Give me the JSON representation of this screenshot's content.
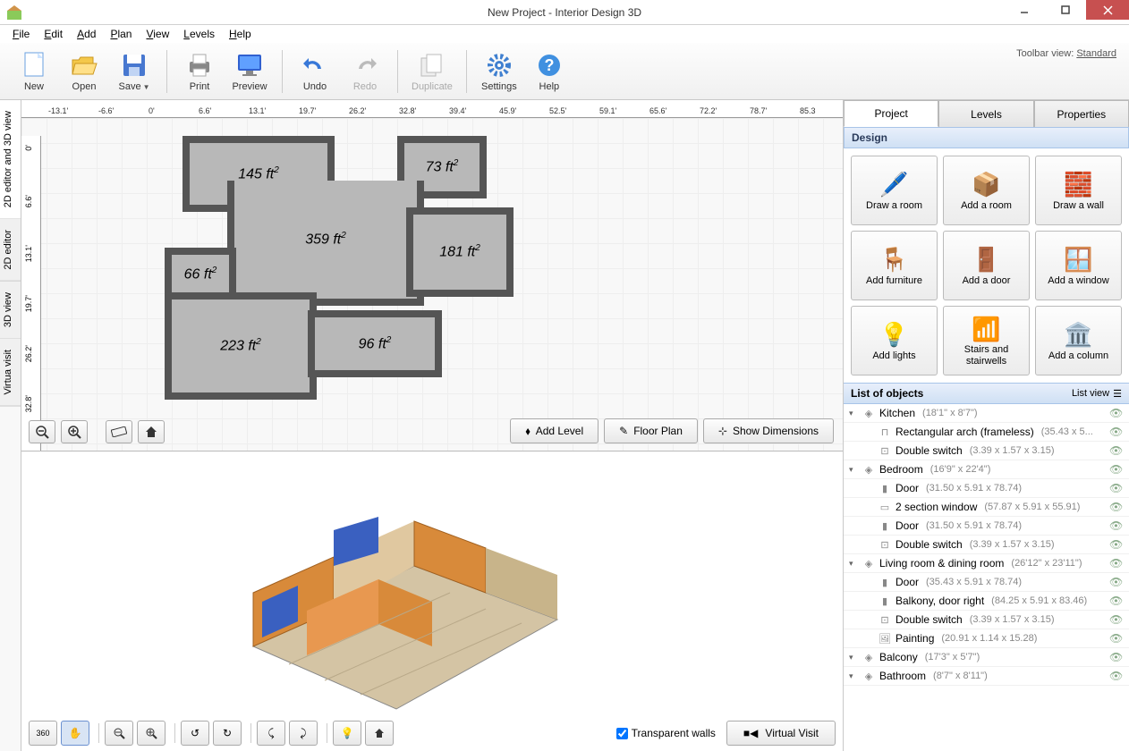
{
  "window": {
    "title": "New Project - Interior Design 3D"
  },
  "menu": {
    "items": [
      "File",
      "Edit",
      "Add",
      "Plan",
      "View",
      "Levels",
      "Help"
    ]
  },
  "toolbar_view": {
    "label": "Toolbar view:",
    "value": "Standard"
  },
  "toolbar": {
    "new": "New",
    "open": "Open",
    "save": "Save",
    "print": "Print",
    "preview": "Preview",
    "undo": "Undo",
    "redo": "Redo",
    "duplicate": "Duplicate",
    "settings": "Settings",
    "help": "Help"
  },
  "vtabs": {
    "combo": "2D editor and 3D view",
    "editor": "2D editor",
    "v3d": "3D view",
    "vv": "Virtua visit"
  },
  "ruler_h": [
    "-13.1'",
    "-6.6'",
    "0'",
    "6.6'",
    "13.1'",
    "19.7'",
    "26.2'",
    "32.8'",
    "39.4'",
    "45.9'",
    "52.5'",
    "59.1'",
    "65.6'",
    "72.2'",
    "78.7'",
    "85.3"
  ],
  "ruler_v": [
    "0'",
    "6.6'",
    "13.1'",
    "19.7'",
    "26.2'",
    "32.8'"
  ],
  "rooms": {
    "r1": "145 ft",
    "r2": "73 ft",
    "r3": "359 ft",
    "r4": "181 ft",
    "r5": "66 ft",
    "r6": "223 ft",
    "r7": "96 ft"
  },
  "topbtns": {
    "addlevel": "Add Level",
    "floorplan": "Floor Plan",
    "showdims": "Show Dimensions"
  },
  "v3d": {
    "transparent": "Transparent walls",
    "virtual": "Virtual Visit"
  },
  "rtabs": {
    "project": "Project",
    "levels": "Levels",
    "properties": "Properties"
  },
  "design": {
    "header": "Design",
    "drawroom": "Draw a room",
    "addroom": "Add a room",
    "drawwall": "Draw a wall",
    "addfurn": "Add furniture",
    "adddoor": "Add a door",
    "addwin": "Add a window",
    "addlights": "Add lights",
    "stairs": "Stairs and stairwells",
    "addcol": "Add a column"
  },
  "objlist": {
    "header": "List of objects",
    "listview": "List view",
    "items": [
      {
        "lvl": 0,
        "name": "Kitchen",
        "dims": "(18'1\" x 8'7\")",
        "icon": "room"
      },
      {
        "lvl": 1,
        "name": "Rectangular arch (frameless)",
        "dims": "(35.43 x 5...",
        "icon": "arch"
      },
      {
        "lvl": 1,
        "name": "Double switch",
        "dims": "(3.39 x 1.57 x 3.15)",
        "icon": "switch"
      },
      {
        "lvl": 0,
        "name": "Bedroom",
        "dims": "(16'9\" x 22'4\")",
        "icon": "room"
      },
      {
        "lvl": 1,
        "name": "Door",
        "dims": "(31.50 x 5.91 x 78.74)",
        "icon": "door"
      },
      {
        "lvl": 1,
        "name": "2 section window",
        "dims": "(57.87 x 5.91 x 55.91)",
        "icon": "window"
      },
      {
        "lvl": 1,
        "name": "Door",
        "dims": "(31.50 x 5.91 x 78.74)",
        "icon": "door"
      },
      {
        "lvl": 1,
        "name": "Double switch",
        "dims": "(3.39 x 1.57 x 3.15)",
        "icon": "switch"
      },
      {
        "lvl": 0,
        "name": "Living room & dining room",
        "dims": "(26'12\" x 23'11\")",
        "icon": "room"
      },
      {
        "lvl": 1,
        "name": "Door",
        "dims": "(35.43 x 5.91 x 78.74)",
        "icon": "door"
      },
      {
        "lvl": 1,
        "name": "Balkony, door right",
        "dims": "(84.25 x 5.91 x 83.46)",
        "icon": "door"
      },
      {
        "lvl": 1,
        "name": "Double switch",
        "dims": "(3.39 x 1.57 x 3.15)",
        "icon": "switch"
      },
      {
        "lvl": 1,
        "name": "Painting",
        "dims": "(20.91 x 1.14 x 15.28)",
        "icon": "painting"
      },
      {
        "lvl": 0,
        "name": "Balcony",
        "dims": "(17'3\" x 5'7\")",
        "icon": "room"
      },
      {
        "lvl": 0,
        "name": "Bathroom",
        "dims": "(8'7\" x 8'11\")",
        "icon": "room"
      }
    ]
  },
  "colors": {
    "wall3d_orange": "#d88a3a",
    "wall3d_blue": "#3a60c0",
    "floor3d": "#c8b090",
    "close_red": "#c75050"
  }
}
